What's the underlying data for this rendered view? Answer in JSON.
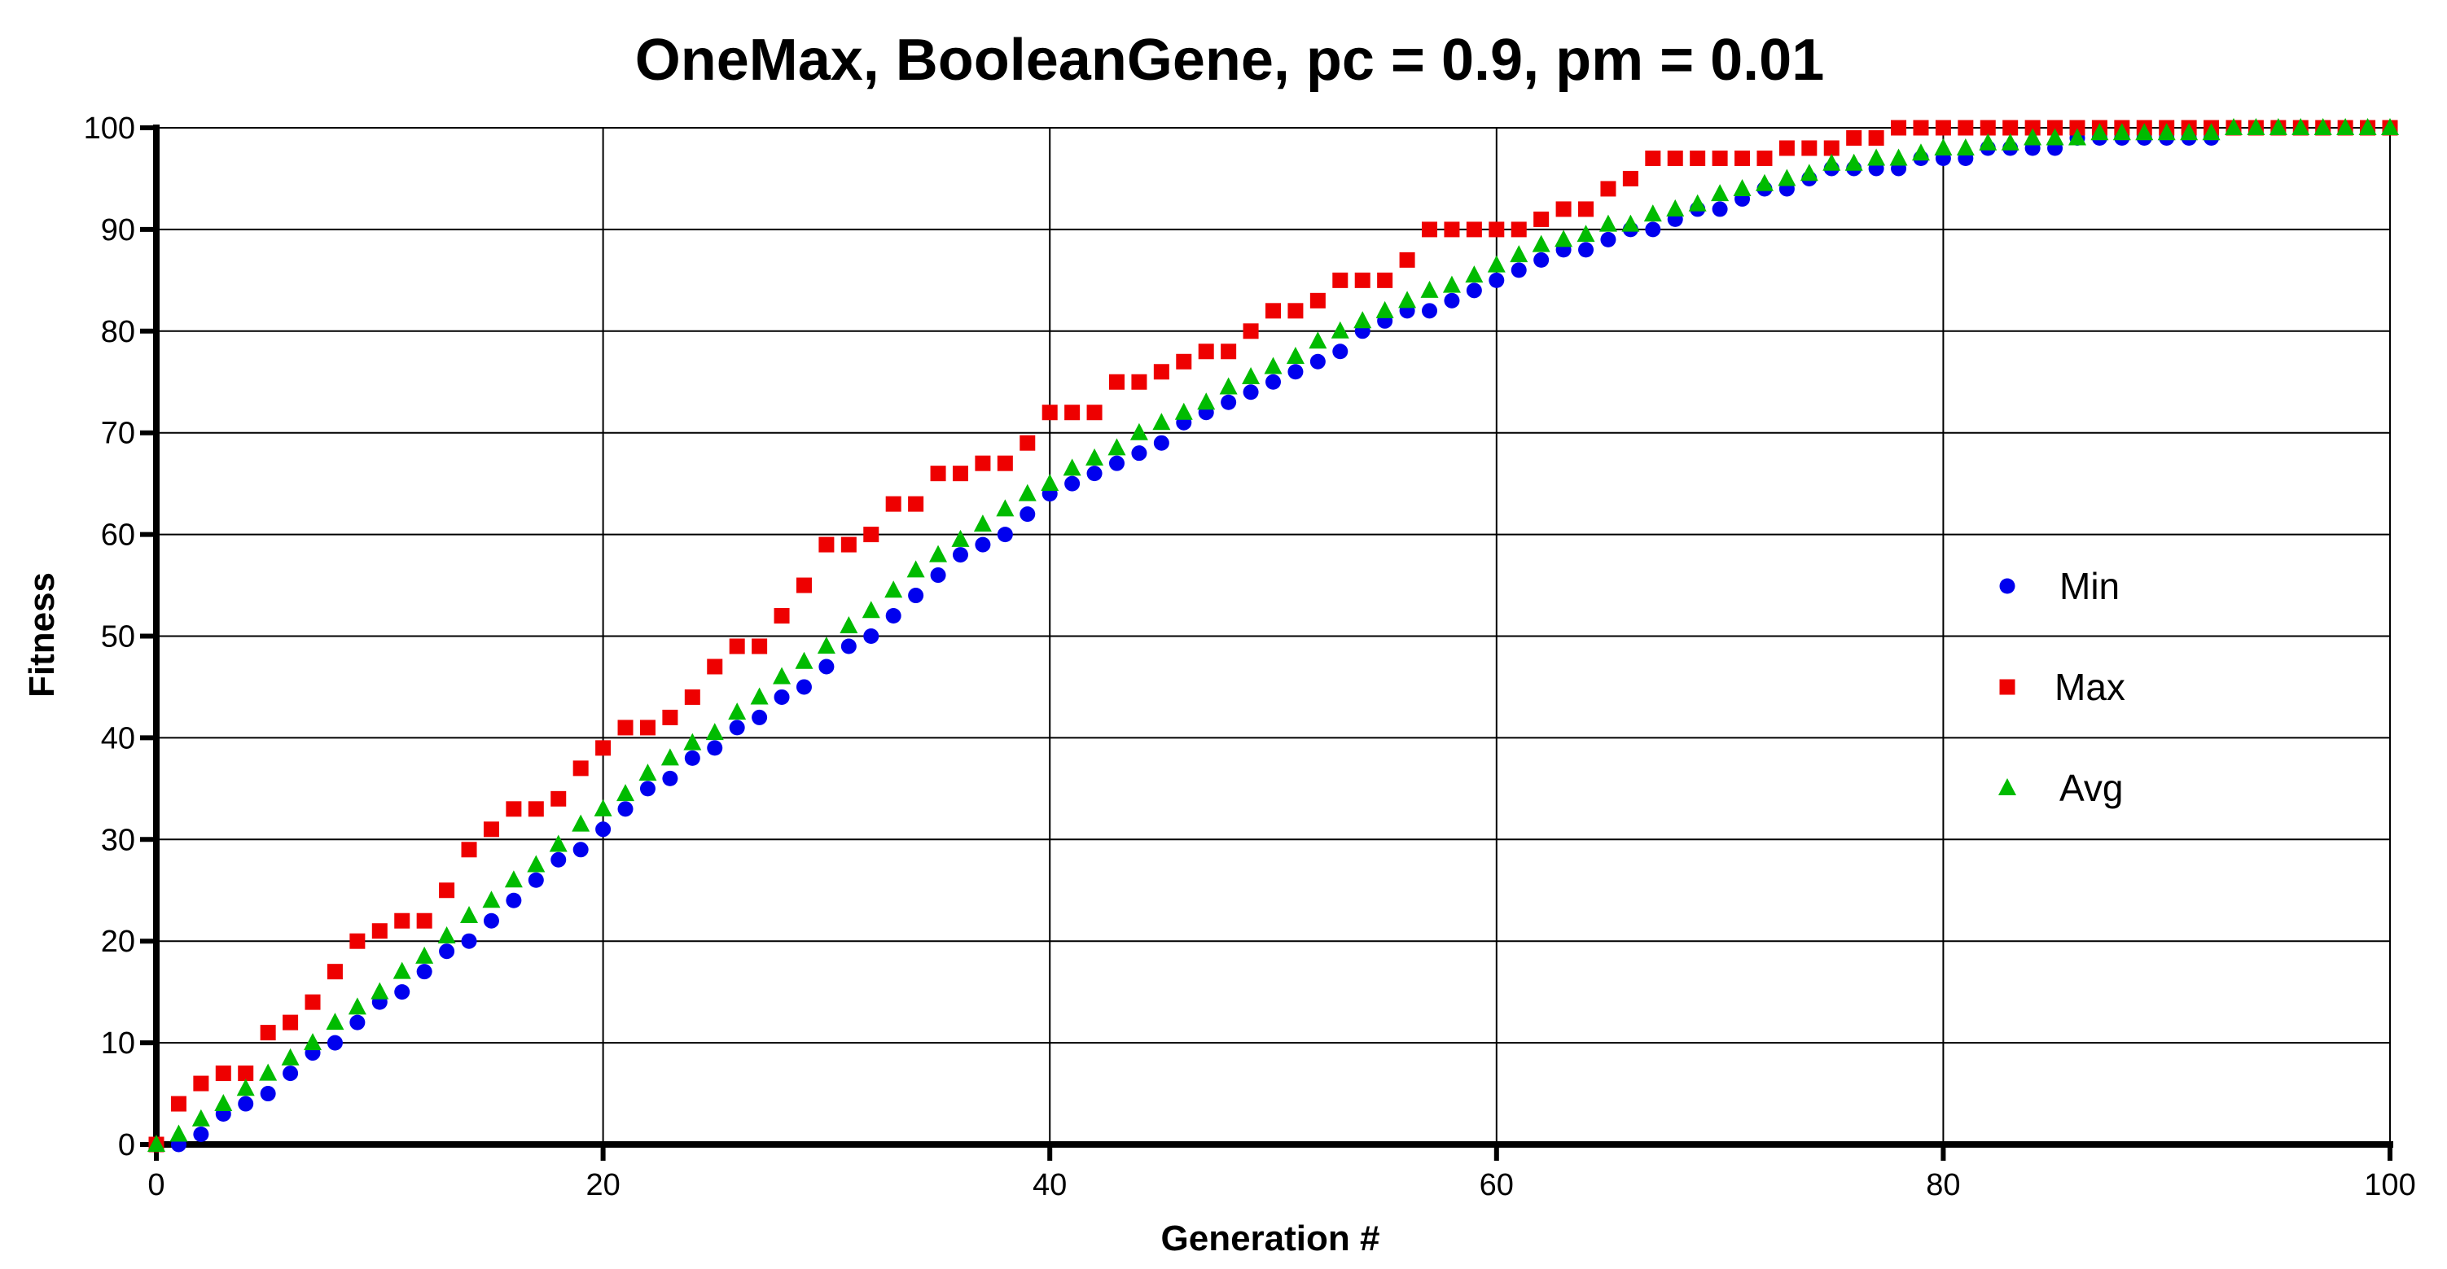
{
  "chart_data": {
    "type": "scatter",
    "title": "OneMax, BooleanGene, pc = 0.9, pm = 0.01",
    "xlabel": "Generation #",
    "ylabel": "Fitness",
    "xlim": [
      0,
      100
    ],
    "ylim": [
      0,
      100
    ],
    "x_ticks": [
      0,
      20,
      40,
      60,
      80,
      100
    ],
    "y_ticks": [
      0,
      10,
      20,
      30,
      40,
      50,
      60,
      70,
      80,
      90,
      100
    ],
    "grid": true,
    "legend_position": "right",
    "x": [
      0,
      1,
      2,
      3,
      4,
      5,
      6,
      7,
      8,
      9,
      10,
      11,
      12,
      13,
      14,
      15,
      16,
      17,
      18,
      19,
      20,
      21,
      22,
      23,
      24,
      25,
      26,
      27,
      28,
      29,
      30,
      31,
      32,
      33,
      34,
      35,
      36,
      37,
      38,
      39,
      40,
      41,
      42,
      43,
      44,
      45,
      46,
      47,
      48,
      49,
      50,
      51,
      52,
      53,
      54,
      55,
      56,
      57,
      58,
      59,
      60,
      61,
      62,
      63,
      64,
      65,
      66,
      67,
      68,
      69,
      70,
      71,
      72,
      73,
      74,
      75,
      76,
      77,
      78,
      79,
      80,
      81,
      82,
      83,
      84,
      85,
      86,
      87,
      88,
      89,
      90,
      91,
      92,
      93,
      94,
      95,
      96,
      97,
      98,
      99,
      100
    ],
    "series": [
      {
        "name": "Min",
        "marker": "circle",
        "color": "#0000ee",
        "values": [
          0,
          0,
          1,
          3,
          4,
          5,
          7,
          9,
          10,
          12,
          14,
          15,
          17,
          19,
          20,
          22,
          24,
          26,
          28,
          29,
          31,
          33,
          35,
          36,
          38,
          39,
          41,
          42,
          44,
          45,
          47,
          49,
          50,
          52,
          54,
          56,
          58,
          59,
          60,
          62,
          64,
          65,
          66,
          67,
          68,
          69,
          71,
          72,
          73,
          74,
          75,
          76,
          77,
          78,
          80,
          81,
          82,
          82,
          83,
          84,
          85,
          86,
          87,
          88,
          88,
          89,
          90,
          90,
          91,
          92,
          92,
          93,
          94,
          94,
          95,
          96,
          96,
          96,
          96,
          97,
          97,
          97,
          98,
          98,
          98,
          98,
          99,
          99,
          99,
          99,
          99,
          99,
          99,
          100,
          100,
          100,
          100,
          100,
          100,
          100,
          100
        ]
      },
      {
        "name": "Max",
        "marker": "square",
        "color": "#ee0000",
        "values": [
          0,
          4,
          6,
          7,
          7,
          11,
          12,
          14,
          17,
          20,
          21,
          22,
          22,
          25,
          29,
          31,
          33,
          33,
          34,
          37,
          39,
          41,
          41,
          42,
          44,
          47,
          49,
          49,
          52,
          55,
          59,
          59,
          60,
          63,
          63,
          66,
          66,
          67,
          67,
          69,
          72,
          72,
          72,
          75,
          75,
          76,
          77,
          78,
          78,
          80,
          82,
          82,
          83,
          85,
          85,
          85,
          87,
          90,
          90,
          90,
          90,
          90,
          91,
          92,
          92,
          94,
          95,
          97,
          97,
          97,
          97,
          97,
          97,
          98,
          98,
          98,
          99,
          99,
          100,
          100,
          100,
          100,
          100,
          100,
          100,
          100,
          100,
          100,
          100,
          100,
          100,
          100,
          100,
          100,
          100,
          100,
          100,
          100,
          100,
          100,
          100
        ]
      },
      {
        "name": "Avg",
        "marker": "triangle",
        "color": "#00bb00",
        "values": [
          0,
          1,
          2.5,
          4,
          5.5,
          7,
          8.5,
          10,
          12,
          13.5,
          15,
          17,
          18.5,
          20.5,
          22.5,
          24,
          26,
          27.5,
          29.5,
          31.5,
          33,
          34.5,
          36.5,
          38,
          39.5,
          40.5,
          42.5,
          44,
          46,
          47.5,
          49,
          51,
          52.5,
          54.5,
          56.5,
          58,
          59.5,
          61,
          62.5,
          64,
          65,
          66.5,
          67.5,
          68.5,
          70,
          71,
          72,
          73,
          74.5,
          75.5,
          76.5,
          77.5,
          79,
          80,
          81,
          82,
          83,
          84,
          84.5,
          85.5,
          86.5,
          87.5,
          88.5,
          89,
          89.5,
          90.5,
          90.5,
          91.5,
          92,
          92.5,
          93.5,
          94,
          94.5,
          95,
          95.5,
          96.5,
          96.5,
          97,
          97,
          97.5,
          98,
          98,
          98.5,
          98.5,
          99,
          99,
          99,
          99.5,
          99.5,
          99.5,
          99.5,
          99.5,
          99.5,
          100,
          100,
          100,
          100,
          100,
          100,
          100,
          100
        ]
      }
    ]
  }
}
